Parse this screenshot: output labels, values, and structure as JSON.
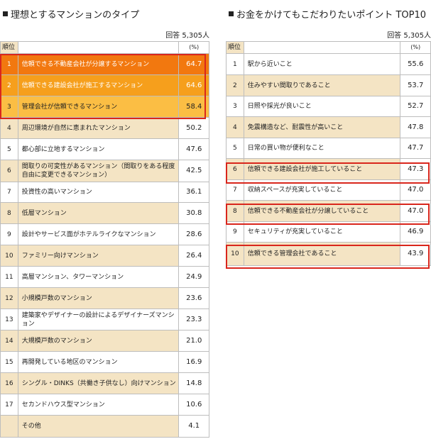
{
  "left": {
    "title": "理想とするマンションのタイプ",
    "respondents": "回答 5,305人",
    "header_rank": "順位",
    "header_value": "(%)",
    "rows": [
      {
        "rank": "1",
        "label": "信頼できる不動産会社が分譲するマンション",
        "value": "64.7"
      },
      {
        "rank": "2",
        "label": "信頼できる建設会社が施工するマンション",
        "value": "64.6"
      },
      {
        "rank": "3",
        "label": "管理会社が信頼できるマンション",
        "value": "58.4"
      },
      {
        "rank": "4",
        "label": "周辺環境が自然に恵まれたマンション",
        "value": "50.2"
      },
      {
        "rank": "5",
        "label": "都心部に立地するマンション",
        "value": "47.6"
      },
      {
        "rank": "6",
        "label": "間取りの可変性があるマンション（間取りをある程度自由に変更できるマンション）",
        "value": "42.5"
      },
      {
        "rank": "7",
        "label": "投資性の高いマンション",
        "value": "36.1"
      },
      {
        "rank": "8",
        "label": "低層マンション",
        "value": "30.8"
      },
      {
        "rank": "9",
        "label": "設計やサービス面がホテルライクなマンション",
        "value": "28.6"
      },
      {
        "rank": "10",
        "label": "ファミリー向けマンション",
        "value": "26.4"
      },
      {
        "rank": "11",
        "label": "高層マンション、タワーマンション",
        "value": "24.9"
      },
      {
        "rank": "12",
        "label": "小規模戸数のマンション",
        "value": "23.6"
      },
      {
        "rank": "13",
        "label": "建築家やデザイナーの設計によるデザイナーズマンション",
        "value": "23.3"
      },
      {
        "rank": "14",
        "label": "大規模戸数のマンション",
        "value": "21.0"
      },
      {
        "rank": "15",
        "label": "再開発している地区のマンション",
        "value": "16.9"
      },
      {
        "rank": "16",
        "label": "シングル・DINKS（共働き子供なし）向けマンション",
        "value": "14.8"
      },
      {
        "rank": "17",
        "label": "セカンドハウス型マンション",
        "value": "10.6"
      },
      {
        "rank": "",
        "label": "その他",
        "value": "4.1"
      }
    ]
  },
  "right": {
    "title": "お金をかけてもこだわりたいポイント TOP10",
    "respondents": "回答 5,305人",
    "header_rank": "順位",
    "header_value": "(%)",
    "rows": [
      {
        "rank": "1",
        "label": "駅から近いこと",
        "value": "55.6"
      },
      {
        "rank": "2",
        "label": "住みやすい間取りであること",
        "value": "53.7"
      },
      {
        "rank": "3",
        "label": "日照や採光が良いこと",
        "value": "52.7"
      },
      {
        "rank": "4",
        "label": "免震構造など、耐震性が高いこと",
        "value": "47.8"
      },
      {
        "rank": "5",
        "label": "日常の買い物が便利なこと",
        "value": "47.7"
      },
      {
        "rank": "6",
        "label": "信頼できる建設会社が施工していること",
        "value": "47.3"
      },
      {
        "rank": "7",
        "label": "収納スペースが充実していること",
        "value": "47.0"
      },
      {
        "rank": "8",
        "label": "信頼できる不動産会社が分譲していること",
        "value": "47.0"
      },
      {
        "rank": "9",
        "label": "セキュリティが充実していること",
        "value": "46.9"
      },
      {
        "rank": "10",
        "label": "信頼できる管理会社であること",
        "value": "43.9"
      }
    ]
  },
  "colors": {
    "rank1": "#f2780f",
    "rank2": "#f69f1c",
    "rank3": "#fbbe44",
    "shade": "#f4e4c4",
    "highlight_border": "#d9261c"
  }
}
